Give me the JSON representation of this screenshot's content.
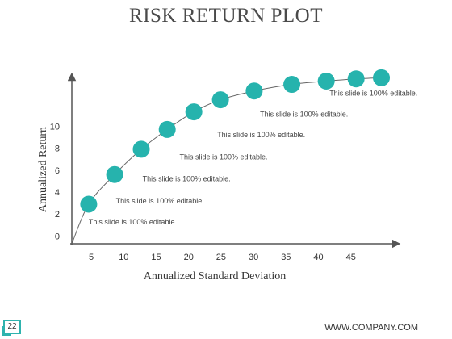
{
  "slide": {
    "page_number": "22",
    "company": "WWW.COMPANY.COM"
  },
  "colors": {
    "accent": "#26b3ad",
    "axis": "#555555",
    "curve": "#666666"
  },
  "chart_data": {
    "type": "scatter",
    "title": "RISK RETURN PLOT",
    "xlabel": "Annualized Standard Deviation",
    "ylabel": "Annualized Return",
    "x_ticks": [
      5,
      10,
      15,
      20,
      25,
      30,
      35,
      40,
      45
    ],
    "y_ticks": [
      0,
      2,
      4,
      6,
      8,
      10
    ],
    "xlim": [
      2,
      52
    ],
    "ylim": [
      -0.7,
      14.5
    ],
    "grid": false,
    "legend": "none",
    "points": [
      {
        "x": 4.6,
        "y": 2.9
      },
      {
        "x": 8.6,
        "y": 5.6
      },
      {
        "x": 12.7,
        "y": 7.9
      },
      {
        "x": 16.7,
        "y": 9.7
      },
      {
        "x": 20.8,
        "y": 11.3
      },
      {
        "x": 24.9,
        "y": 12.4
      },
      {
        "x": 30.1,
        "y": 13.2
      },
      {
        "x": 35.9,
        "y": 13.8
      },
      {
        "x": 41.2,
        "y": 14.1
      },
      {
        "x": 45.8,
        "y": 14.3
      },
      {
        "x": 49.7,
        "y": 14.4
      }
    ],
    "annotations": [
      {
        "text": "This slide is 100% editable.",
        "x": 4.6,
        "y": 1.3
      },
      {
        "text": "This slide is 100% editable.",
        "x": 8.8,
        "y": 3.2
      },
      {
        "text": "This slide is 100% editable.",
        "x": 12.9,
        "y": 5.2
      },
      {
        "text": "This slide is 100% editable.",
        "x": 18.6,
        "y": 7.2
      },
      {
        "text": "This slide is 100% editable.",
        "x": 24.4,
        "y": 9.2
      },
      {
        "text": "This slide is 100% editable.",
        "x": 31.0,
        "y": 11.1
      },
      {
        "text": "This slide is 100% editable.",
        "x": 41.7,
        "y": 13.0
      }
    ]
  }
}
